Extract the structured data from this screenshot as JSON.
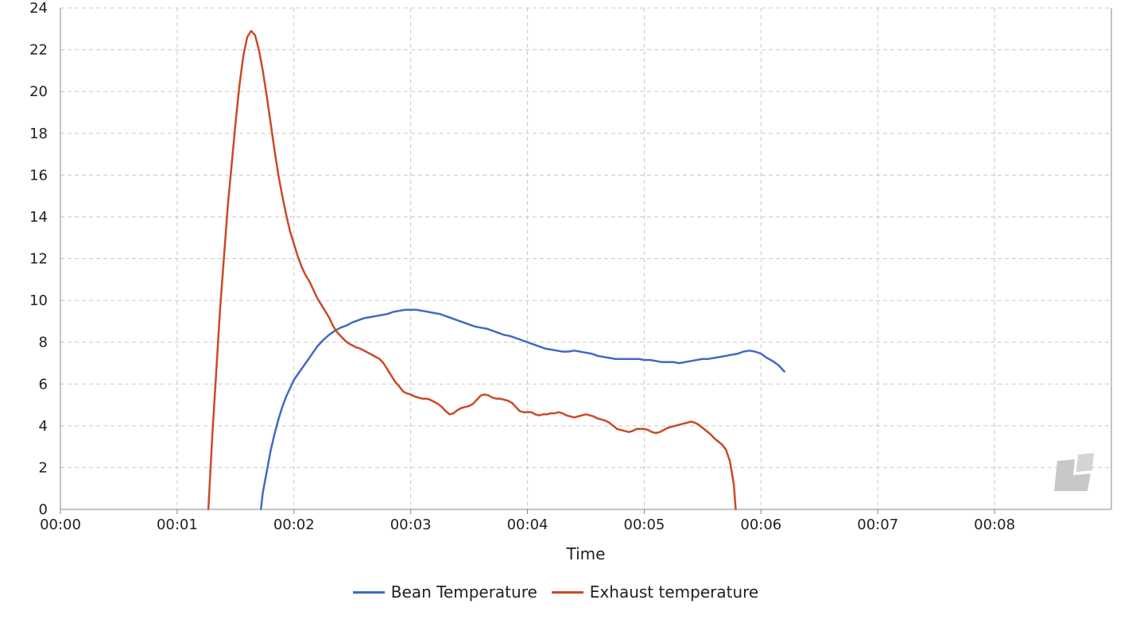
{
  "chart_data": {
    "type": "line",
    "title": "",
    "xlabel": "Time",
    "ylabel": "",
    "xlim": [
      0,
      540
    ],
    "ylim": [
      0,
      24
    ],
    "x_ticks": [
      {
        "value": 0,
        "label": "00:00"
      },
      {
        "value": 60,
        "label": "00:01"
      },
      {
        "value": 120,
        "label": "00:02"
      },
      {
        "value": 180,
        "label": "00:03"
      },
      {
        "value": 240,
        "label": "00:04"
      },
      {
        "value": 300,
        "label": "00:05"
      },
      {
        "value": 360,
        "label": "00:06"
      },
      {
        "value": 420,
        "label": "00:07"
      },
      {
        "value": 480,
        "label": "00:08"
      }
    ],
    "y_ticks": [
      0,
      2,
      4,
      6,
      8,
      10,
      12,
      14,
      16,
      18,
      20,
      22,
      24
    ],
    "grid": true,
    "legend_position": "bottom",
    "series": [
      {
        "name": "Bean Temperature",
        "color": "#4468c4",
        "points": [
          [
            103,
            0
          ],
          [
            104,
            0.8
          ],
          [
            106,
            1.8
          ],
          [
            108,
            2.8
          ],
          [
            110,
            3.6
          ],
          [
            112,
            4.3
          ],
          [
            114,
            4.9
          ],
          [
            116,
            5.4
          ],
          [
            118,
            5.8
          ],
          [
            120,
            6.2
          ],
          [
            123,
            6.6
          ],
          [
            126,
            7.0
          ],
          [
            129,
            7.4
          ],
          [
            132,
            7.8
          ],
          [
            135,
            8.1
          ],
          [
            138,
            8.35
          ],
          [
            141,
            8.55
          ],
          [
            144,
            8.7
          ],
          [
            147,
            8.8
          ],
          [
            150,
            8.95
          ],
          [
            153,
            9.05
          ],
          [
            156,
            9.15
          ],
          [
            159,
            9.2
          ],
          [
            162,
            9.25
          ],
          [
            165,
            9.3
          ],
          [
            168,
            9.35
          ],
          [
            171,
            9.45
          ],
          [
            174,
            9.5
          ],
          [
            177,
            9.55
          ],
          [
            180,
            9.55
          ],
          [
            183,
            9.55
          ],
          [
            186,
            9.5
          ],
          [
            189,
            9.45
          ],
          [
            192,
            9.4
          ],
          [
            195,
            9.35
          ],
          [
            198,
            9.25
          ],
          [
            201,
            9.15
          ],
          [
            204,
            9.05
          ],
          [
            207,
            8.95
          ],
          [
            210,
            8.85
          ],
          [
            213,
            8.75
          ],
          [
            216,
            8.7
          ],
          [
            219,
            8.65
          ],
          [
            222,
            8.55
          ],
          [
            225,
            8.45
          ],
          [
            228,
            8.35
          ],
          [
            231,
            8.3
          ],
          [
            234,
            8.2
          ],
          [
            237,
            8.1
          ],
          [
            240,
            8.0
          ],
          [
            243,
            7.9
          ],
          [
            246,
            7.8
          ],
          [
            249,
            7.7
          ],
          [
            252,
            7.65
          ],
          [
            255,
            7.6
          ],
          [
            258,
            7.55
          ],
          [
            261,
            7.55
          ],
          [
            264,
            7.6
          ],
          [
            267,
            7.55
          ],
          [
            270,
            7.5
          ],
          [
            273,
            7.45
          ],
          [
            276,
            7.35
          ],
          [
            279,
            7.3
          ],
          [
            282,
            7.25
          ],
          [
            285,
            7.2
          ],
          [
            288,
            7.2
          ],
          [
            291,
            7.2
          ],
          [
            294,
            7.2
          ],
          [
            297,
            7.2
          ],
          [
            300,
            7.15
          ],
          [
            303,
            7.15
          ],
          [
            306,
            7.1
          ],
          [
            309,
            7.05
          ],
          [
            312,
            7.05
          ],
          [
            315,
            7.05
          ],
          [
            318,
            7.0
          ],
          [
            321,
            7.05
          ],
          [
            324,
            7.1
          ],
          [
            327,
            7.15
          ],
          [
            330,
            7.2
          ],
          [
            333,
            7.2
          ],
          [
            336,
            7.25
          ],
          [
            339,
            7.3
          ],
          [
            342,
            7.35
          ],
          [
            345,
            7.4
          ],
          [
            348,
            7.45
          ],
          [
            351,
            7.55
          ],
          [
            354,
            7.6
          ],
          [
            357,
            7.55
          ],
          [
            360,
            7.45
          ],
          [
            363,
            7.25
          ],
          [
            366,
            7.1
          ],
          [
            369,
            6.9
          ],
          [
            372,
            6.6
          ]
        ]
      },
      {
        "name": "Exhaust temperature",
        "color": "#c94a26",
        "points": [
          [
            76,
            0
          ],
          [
            78,
            3.5
          ],
          [
            80,
            6.5
          ],
          [
            82,
            9.5
          ],
          [
            84,
            12
          ],
          [
            86,
            14.5
          ],
          [
            88,
            16.5
          ],
          [
            90,
            18.5
          ],
          [
            92,
            20.3
          ],
          [
            94,
            21.7
          ],
          [
            96,
            22.6
          ],
          [
            98,
            22.9
          ],
          [
            100,
            22.7
          ],
          [
            102,
            22.0
          ],
          [
            104,
            21.0
          ],
          [
            106,
            19.8
          ],
          [
            108,
            18.5
          ],
          [
            110,
            17.2
          ],
          [
            112,
            16.0
          ],
          [
            114,
            15.0
          ],
          [
            116,
            14.1
          ],
          [
            118,
            13.3
          ],
          [
            120,
            12.7
          ],
          [
            122,
            12.1
          ],
          [
            124,
            11.6
          ],
          [
            126,
            11.2
          ],
          [
            128,
            10.9
          ],
          [
            130,
            10.5
          ],
          [
            132,
            10.1
          ],
          [
            134,
            9.8
          ],
          [
            136,
            9.5
          ],
          [
            138,
            9.2
          ],
          [
            140,
            8.8
          ],
          [
            142,
            8.5
          ],
          [
            144,
            8.3
          ],
          [
            146,
            8.1
          ],
          [
            148,
            7.95
          ],
          [
            150,
            7.85
          ],
          [
            152,
            7.75
          ],
          [
            154,
            7.7
          ],
          [
            156,
            7.6
          ],
          [
            158,
            7.5
          ],
          [
            160,
            7.4
          ],
          [
            162,
            7.3
          ],
          [
            164,
            7.2
          ],
          [
            166,
            7.0
          ],
          [
            168,
            6.7
          ],
          [
            170,
            6.4
          ],
          [
            172,
            6.1
          ],
          [
            174,
            5.9
          ],
          [
            176,
            5.65
          ],
          [
            178,
            5.55
          ],
          [
            180,
            5.5
          ],
          [
            182,
            5.4
          ],
          [
            184,
            5.35
          ],
          [
            186,
            5.3
          ],
          [
            188,
            5.3
          ],
          [
            190,
            5.25
          ],
          [
            192,
            5.15
          ],
          [
            194,
            5.05
          ],
          [
            196,
            4.9
          ],
          [
            198,
            4.7
          ],
          [
            200,
            4.55
          ],
          [
            202,
            4.6
          ],
          [
            204,
            4.75
          ],
          [
            206,
            4.85
          ],
          [
            208,
            4.9
          ],
          [
            210,
            4.95
          ],
          [
            212,
            5.05
          ],
          [
            214,
            5.25
          ],
          [
            216,
            5.45
          ],
          [
            218,
            5.5
          ],
          [
            220,
            5.45
          ],
          [
            222,
            5.35
          ],
          [
            224,
            5.3
          ],
          [
            226,
            5.3
          ],
          [
            228,
            5.25
          ],
          [
            230,
            5.2
          ],
          [
            232,
            5.1
          ],
          [
            234,
            4.9
          ],
          [
            236,
            4.7
          ],
          [
            238,
            4.65
          ],
          [
            240,
            4.65
          ],
          [
            242,
            4.65
          ],
          [
            244,
            4.55
          ],
          [
            246,
            4.5
          ],
          [
            248,
            4.55
          ],
          [
            250,
            4.55
          ],
          [
            252,
            4.6
          ],
          [
            254,
            4.6
          ],
          [
            256,
            4.65
          ],
          [
            258,
            4.6
          ],
          [
            260,
            4.5
          ],
          [
            262,
            4.45
          ],
          [
            264,
            4.4
          ],
          [
            266,
            4.45
          ],
          [
            268,
            4.5
          ],
          [
            270,
            4.55
          ],
          [
            272,
            4.5
          ],
          [
            274,
            4.45
          ],
          [
            276,
            4.35
          ],
          [
            278,
            4.3
          ],
          [
            280,
            4.25
          ],
          [
            282,
            4.15
          ],
          [
            284,
            4.0
          ],
          [
            286,
            3.85
          ],
          [
            288,
            3.8
          ],
          [
            290,
            3.75
          ],
          [
            292,
            3.7
          ],
          [
            294,
            3.75
          ],
          [
            296,
            3.85
          ],
          [
            298,
            3.85
          ],
          [
            300,
            3.85
          ],
          [
            302,
            3.8
          ],
          [
            304,
            3.7
          ],
          [
            306,
            3.65
          ],
          [
            308,
            3.7
          ],
          [
            310,
            3.8
          ],
          [
            312,
            3.9
          ],
          [
            314,
            3.95
          ],
          [
            316,
            4.0
          ],
          [
            318,
            4.05
          ],
          [
            320,
            4.1
          ],
          [
            322,
            4.15
          ],
          [
            324,
            4.2
          ],
          [
            326,
            4.15
          ],
          [
            328,
            4.05
          ],
          [
            330,
            3.9
          ],
          [
            332,
            3.75
          ],
          [
            334,
            3.6
          ],
          [
            336,
            3.4
          ],
          [
            338,
            3.25
          ],
          [
            340,
            3.1
          ],
          [
            342,
            2.85
          ],
          [
            344,
            2.3
          ],
          [
            346,
            1.2
          ],
          [
            347,
            0
          ]
        ]
      }
    ]
  },
  "legend": {
    "items": [
      {
        "label": "Bean Temperature",
        "color": "#4468c4"
      },
      {
        "label": "Exhaust temperature",
        "color": "#c94a26"
      }
    ]
  },
  "watermark": {
    "icon": "logo-icon",
    "color": "#c8c8c8"
  }
}
